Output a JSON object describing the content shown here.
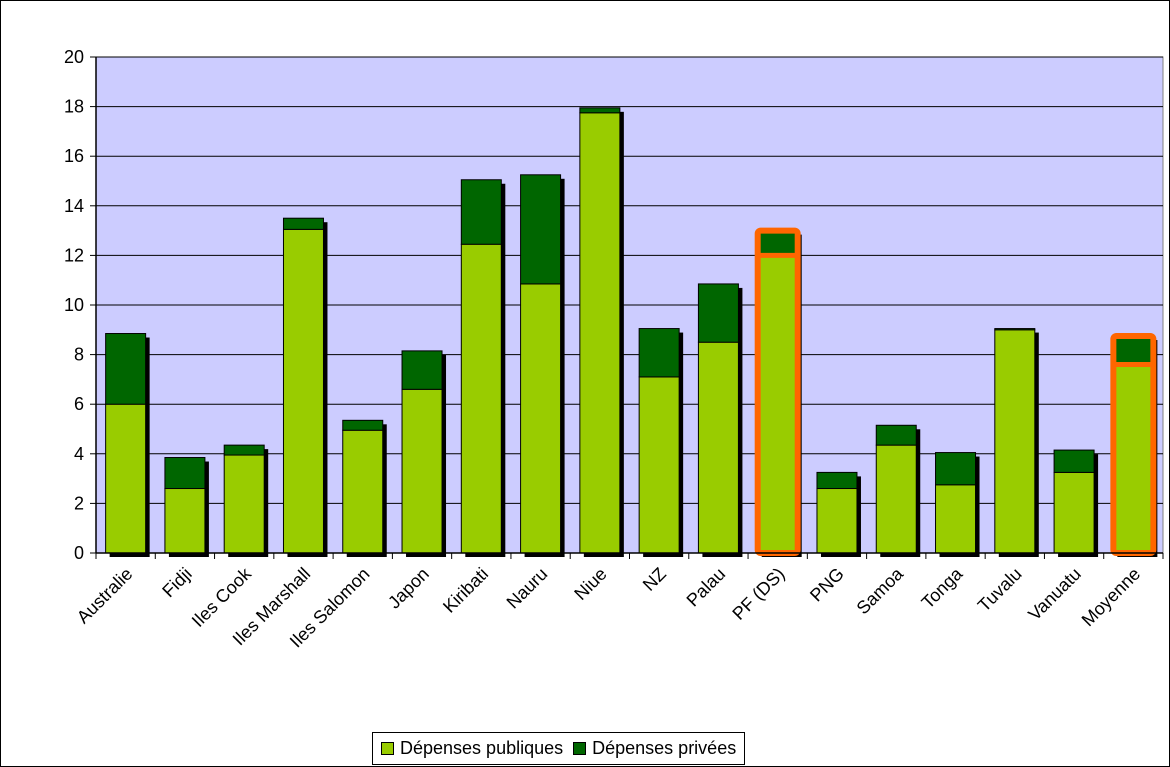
{
  "chart_data": {
    "type": "bar",
    "stacked": true,
    "title": "",
    "xlabel": "",
    "ylabel": "",
    "ylim": [
      0,
      20
    ],
    "yticks": [
      "0",
      "2",
      "4",
      "6",
      "8",
      "10",
      "12",
      "14",
      "16",
      "18",
      "20"
    ],
    "grid": true,
    "legend_position": "bottom",
    "categories": [
      "Australie",
      "Fidji",
      "Iles Cook",
      "Iles Marshall",
      "Iles Salomon",
      "Japon",
      "Kiribati",
      "Nauru",
      "Niue",
      "NZ",
      "Palau",
      "PF (DS)",
      "PNG",
      "Samoa",
      "Tonga",
      "Tuvalu",
      "Vanuatu",
      "Moyenne"
    ],
    "highlighted": [
      "PF (DS)",
      "Moyenne"
    ],
    "series": [
      {
        "name": "Dépenses publiques",
        "color": "#99cc00",
        "values": [
          6.0,
          2.6,
          3.95,
          13.05,
          4.95,
          6.6,
          12.45,
          10.85,
          17.75,
          7.1,
          8.5,
          12.0,
          2.6,
          4.35,
          2.75,
          9.0,
          3.25,
          7.6
        ]
      },
      {
        "name": "Dépenses privées",
        "color": "#006600",
        "values": [
          2.85,
          1.25,
          0.4,
          0.45,
          0.4,
          1.55,
          2.6,
          4.4,
          0.2,
          1.95,
          2.35,
          1.0,
          0.65,
          0.8,
          1.3,
          0.05,
          0.9,
          1.15
        ]
      }
    ],
    "colors": {
      "plot_background": "#ccccff",
      "highlight_border": "#ff6600",
      "bar_outline": "#000000"
    }
  }
}
